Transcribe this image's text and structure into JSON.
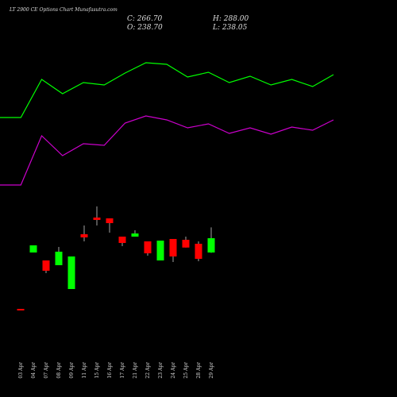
{
  "header": {
    "title": "LT 2900 CE Options Chart Munafasutra.com",
    "close": "C: 266.70",
    "open": "O: 238.70",
    "high": "H: 288.00",
    "low": "L: 238.05"
  },
  "chart_data": [
    {
      "type": "line",
      "ylim": [
        0,
        300
      ],
      "series": [
        {
          "color": "#00ff00",
          "values": [
            152,
            152,
            200,
            182,
            196,
            193,
            208,
            221,
            219,
            203,
            209,
            196,
            204,
            193,
            200,
            191,
            206
          ]
        },
        {
          "color": "#cc00cc",
          "values": [
            67,
            67,
            129,
            104,
            119,
            117,
            145,
            154,
            149,
            139,
            144,
            132,
            139,
            131,
            140,
            136,
            149
          ]
        }
      ]
    },
    {
      "type": "candlestick",
      "ylim": [
        111.1,
        360.1
      ],
      "up_color": "#00ff00",
      "down_color": "#ff0000",
      "categories": [
        "03 Apr",
        "04 Apr",
        "07 Apr",
        "08 Apr",
        "09 Apr",
        "11 Apr",
        "15 Apr",
        "16 Apr",
        "17 Apr",
        "21 Apr",
        "22 Apr",
        "23 Apr",
        "24 Apr",
        "25 Apr",
        "28 Apr",
        "29 Apr"
      ],
      "open": [
        128.2,
        238.7,
        223.1,
        213.8,
        167.1,
        274.5,
        307.2,
        305.6,
        269.8,
        269.8,
        260.5,
        223.1,
        265.2,
        263.6,
        255.8,
        238.7
      ],
      "high": [
        128.2,
        252.7,
        223.1,
        249.6,
        230.9,
        291.6,
        328.9,
        305.6,
        269.8,
        282.3,
        260.5,
        262.0,
        265.2,
        269.8,
        260.5,
        288.0
      ],
      "low": [
        125.1,
        238.7,
        198.2,
        213.8,
        167.1,
        260.5,
        291.6,
        277.6,
        251.1,
        269.8,
        232.5,
        223.1,
        220.0,
        248.4,
        221.6,
        238.05
      ],
      "close": [
        125.1,
        252.7,
        202.9,
        240.3,
        230.9,
        268.3,
        302.5,
        296.3,
        257.4,
        276.0,
        237.1,
        262.0,
        230.9,
        248.4,
        226.3,
        266.7
      ]
    }
  ]
}
